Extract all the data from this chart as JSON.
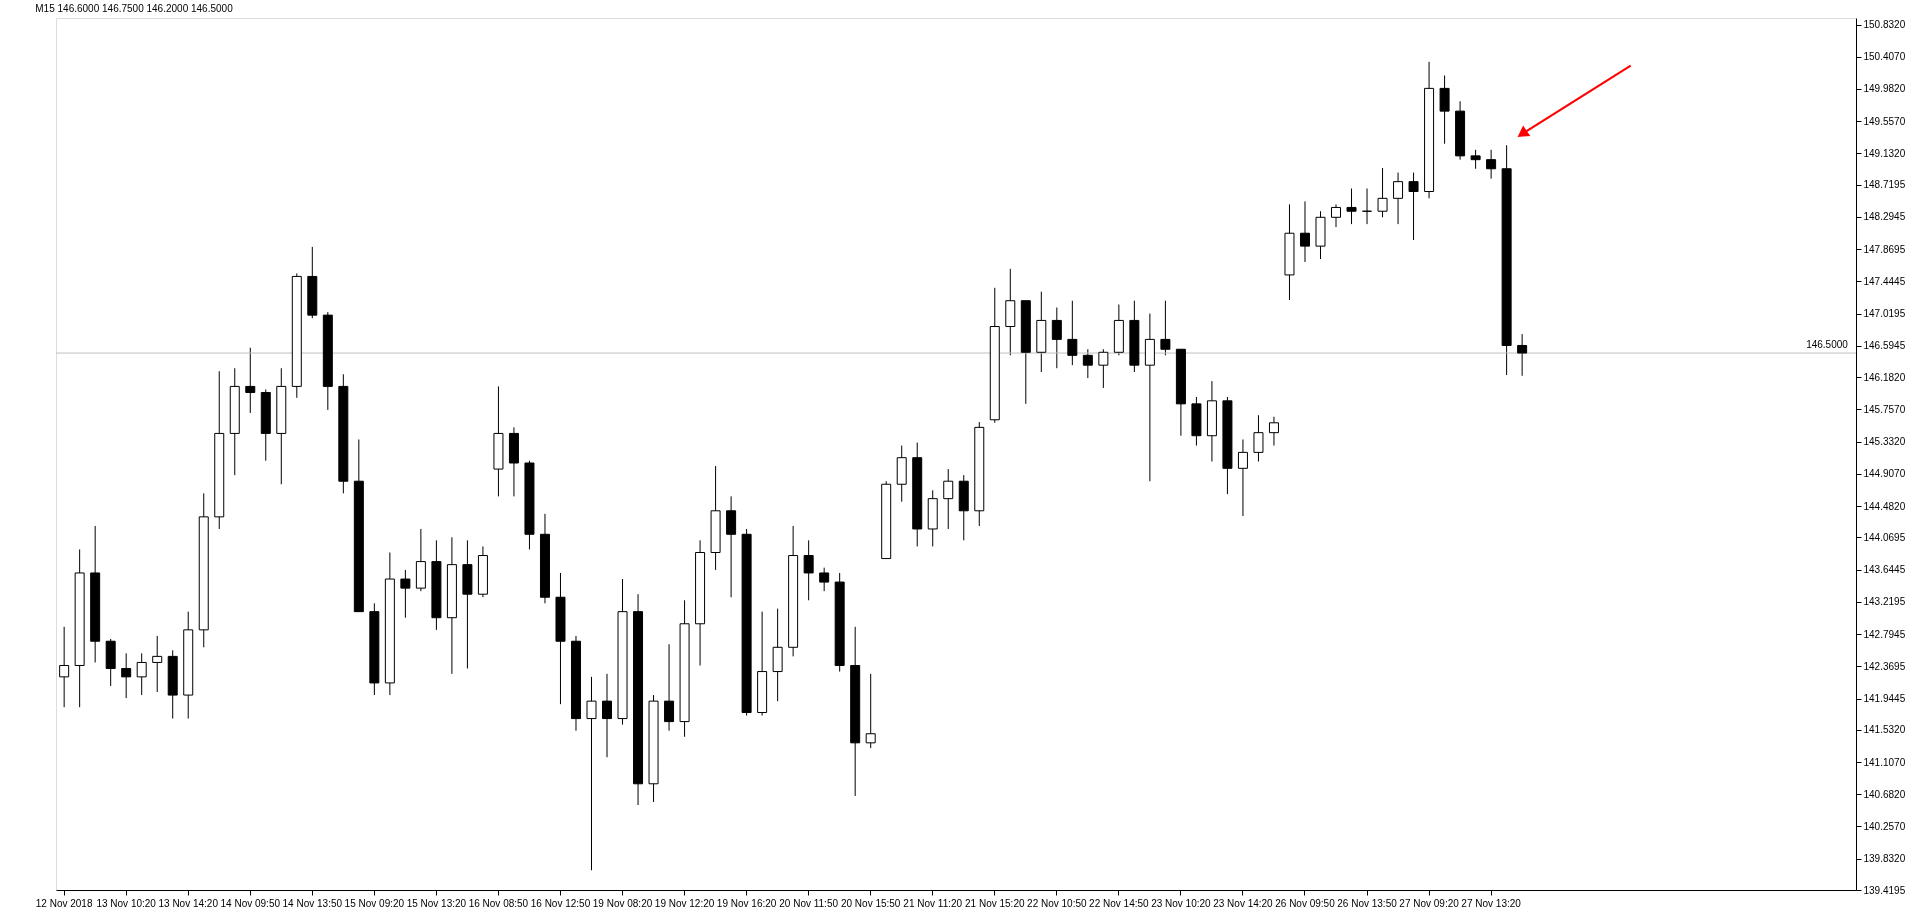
{
  "chart_data": {
    "type": "candlestick",
    "title": "M15  146.6000 146.7500 146.2000 146.5000",
    "categories": [
      "12 Nov 2018",
      null,
      null,
      null,
      "13 Nov 10:20",
      null,
      null,
      null,
      "13 Nov 14:20",
      null,
      null,
      null,
      "14 Nov 09:50",
      null,
      null,
      null,
      "14 Nov 13:50",
      null,
      null,
      null,
      "15 Nov 09:20",
      null,
      null,
      null,
      "15 Nov 13:20",
      null,
      null,
      null,
      "16 Nov 08:50",
      null,
      null,
      null,
      "16 Nov 12:50",
      null,
      null,
      null,
      "19 Nov 08:20",
      null,
      null,
      null,
      "19 Nov 12:20",
      null,
      null,
      null,
      "19 Nov 16:20",
      null,
      null,
      null,
      "20 Nov 11:50",
      null,
      null,
      null,
      "20 Nov 15:50",
      null,
      null,
      null,
      "21 Nov 11:20",
      null,
      null,
      null,
      "21 Nov 15:20",
      null,
      null,
      null,
      "22 Nov 10:50",
      null,
      null,
      null,
      "22 Nov 14:50",
      null,
      null,
      null,
      "23 Nov 10:20",
      null,
      null,
      null,
      "23 Nov 14:20",
      null,
      null,
      null,
      "26 Nov 09:50",
      null,
      null,
      null,
      "26 Nov 13:50",
      null,
      null,
      null,
      "27 Nov 09:20",
      null,
      null,
      null,
      "27 Nov 13:20",
      null,
      null,
      null,
      null,
      null,
      null,
      null,
      null,
      null,
      null,
      null,
      null,
      null,
      null,
      null,
      null,
      null,
      null,
      null,
      null,
      null,
      null,
      null
    ],
    "ohlc": [
      [
        142.23,
        142.89,
        141.83,
        142.38
      ],
      [
        142.38,
        143.91,
        141.83,
        143.6
      ],
      [
        143.6,
        144.22,
        142.42,
        142.7
      ],
      [
        142.7,
        142.73,
        142.11,
        142.34
      ],
      [
        142.34,
        142.54,
        141.95,
        142.23
      ],
      [
        142.23,
        142.54,
        141.99,
        142.42
      ],
      [
        142.42,
        142.77,
        142.03,
        142.5
      ],
      [
        142.5,
        142.58,
        141.68,
        141.99
      ],
      [
        141.99,
        143.09,
        141.68,
        142.85
      ],
      [
        142.85,
        144.65,
        142.62,
        144.34
      ],
      [
        144.34,
        146.26,
        144.18,
        145.44
      ],
      [
        145.44,
        146.3,
        144.89,
        146.06
      ],
      [
        146.06,
        146.57,
        145.71,
        145.98
      ],
      [
        145.98,
        146.02,
        145.08,
        145.44
      ],
      [
        145.44,
        146.3,
        144.77,
        146.06
      ],
      [
        146.06,
        147.55,
        145.91,
        147.51
      ],
      [
        147.51,
        147.9,
        146.96,
        147.0
      ],
      [
        147.0,
        147.04,
        145.75,
        146.06
      ],
      [
        146.06,
        146.22,
        144.65,
        144.81
      ],
      [
        144.81,
        145.36,
        143.09,
        143.09
      ],
      [
        143.09,
        143.2,
        141.99,
        142.15
      ],
      [
        142.15,
        143.87,
        141.99,
        143.52
      ],
      [
        143.52,
        143.64,
        143.01,
        143.4
      ],
      [
        143.4,
        144.18,
        143.36,
        143.75
      ],
      [
        143.75,
        144.03,
        142.85,
        143.01
      ],
      [
        143.01,
        144.07,
        142.27,
        143.71
      ],
      [
        143.71,
        144.03,
        142.34,
        143.32
      ],
      [
        143.32,
        143.95,
        143.28,
        143.83
      ],
      [
        144.97,
        146.06,
        144.61,
        145.44
      ],
      [
        145.44,
        145.52,
        144.61,
        145.05
      ],
      [
        145.05,
        145.08,
        143.91,
        144.11
      ],
      [
        144.11,
        144.38,
        143.2,
        143.28
      ],
      [
        143.28,
        143.6,
        141.87,
        142.7
      ],
      [
        142.7,
        142.77,
        141.52,
        141.68
      ],
      [
        141.68,
        142.23,
        139.68,
        141.91
      ],
      [
        141.91,
        142.27,
        141.17,
        141.68
      ],
      [
        141.68,
        143.52,
        141.6,
        143.09
      ],
      [
        143.09,
        143.32,
        140.54,
        140.82
      ],
      [
        140.82,
        141.99,
        140.58,
        141.91
      ],
      [
        141.91,
        142.66,
        141.52,
        141.64
      ],
      [
        141.64,
        143.24,
        141.44,
        142.93
      ],
      [
        142.93,
        144.03,
        142.38,
        143.87
      ],
      [
        143.87,
        145.01,
        143.64,
        144.42
      ],
      [
        144.42,
        144.61,
        143.28,
        144.11
      ],
      [
        144.11,
        144.18,
        141.72,
        141.76
      ],
      [
        141.76,
        143.09,
        141.72,
        142.3
      ],
      [
        142.3,
        143.13,
        141.91,
        142.62
      ],
      [
        142.62,
        144.22,
        142.5,
        143.83
      ],
      [
        143.83,
        144.03,
        143.24,
        143.6
      ],
      [
        143.6,
        143.67,
        143.36,
        143.48
      ],
      [
        143.48,
        143.6,
        142.3,
        142.38
      ],
      [
        142.38,
        142.89,
        140.66,
        141.36
      ],
      [
        141.36,
        142.27,
        141.29,
        141.48
      ],
      [
        143.79,
        144.81,
        143.79,
        144.77
      ],
      [
        144.77,
        145.28,
        144.54,
        145.12
      ],
      [
        145.12,
        145.32,
        143.95,
        144.18
      ],
      [
        144.18,
        144.69,
        143.95,
        144.58
      ],
      [
        144.58,
        144.97,
        144.18,
        144.81
      ],
      [
        144.81,
        144.89,
        144.03,
        144.42
      ],
      [
        144.42,
        145.59,
        144.22,
        145.52
      ],
      [
        145.62,
        147.36,
        145.58,
        146.85
      ],
      [
        146.85,
        147.61,
        146.47,
        147.19
      ],
      [
        147.19,
        147.19,
        145.83,
        146.51
      ],
      [
        146.51,
        147.31,
        146.25,
        146.93
      ],
      [
        146.93,
        147.1,
        146.3,
        146.68
      ],
      [
        146.68,
        147.19,
        146.34,
        146.47
      ],
      [
        146.47,
        146.55,
        146.17,
        146.34
      ],
      [
        146.34,
        146.55,
        146.04,
        146.51
      ],
      [
        146.51,
        147.14,
        146.47,
        146.93
      ],
      [
        146.93,
        147.19,
        146.25,
        146.34
      ],
      [
        146.34,
        147.02,
        144.81,
        146.68
      ],
      [
        146.68,
        147.19,
        146.47,
        146.55
      ],
      [
        146.55,
        146.55,
        145.41,
        145.83
      ],
      [
        145.83,
        145.92,
        145.28,
        145.41
      ],
      [
        145.41,
        146.13,
        145.07,
        145.87
      ],
      [
        145.87,
        145.92,
        144.64,
        144.98
      ],
      [
        144.98,
        145.36,
        144.35,
        145.19
      ],
      [
        145.19,
        145.68,
        145.07,
        145.45
      ],
      [
        145.45,
        145.66,
        145.28,
        145.58
      ],
      [
        147.53,
        148.46,
        147.2,
        148.08
      ],
      [
        148.08,
        148.5,
        147.7,
        147.91
      ],
      [
        147.91,
        148.37,
        147.74,
        148.29
      ],
      [
        148.29,
        148.46,
        148.16,
        148.42
      ],
      [
        148.42,
        148.67,
        148.2,
        148.37
      ],
      [
        148.37,
        148.67,
        148.2,
        148.37
      ],
      [
        148.37,
        148.94,
        148.29,
        148.54
      ],
      [
        148.54,
        148.88,
        148.2,
        148.76
      ],
      [
        148.76,
        148.88,
        147.99,
        148.63
      ],
      [
        148.63,
        150.34,
        148.54,
        149.99
      ],
      [
        149.99,
        150.16,
        149.26,
        149.69
      ],
      [
        149.69,
        149.82,
        149.05,
        149.1
      ],
      [
        149.1,
        149.18,
        148.93,
        149.05
      ],
      [
        149.05,
        149.18,
        148.8,
        148.93
      ],
      [
        148.93,
        149.24,
        146.21,
        146.6
      ],
      [
        146.6,
        146.75,
        146.2,
        146.5
      ],
      null,
      null,
      null,
      null,
      null,
      null,
      null,
      null,
      null,
      null,
      null,
      null,
      null,
      null,
      null,
      null,
      null,
      null,
      null,
      null,
      null
    ],
    "ylim": [
      139.4195,
      150.918
    ],
    "yticks": [
      {
        "value": 150.832,
        "label": "150.8320"
      },
      {
        "value": 150.407,
        "label": "150.4070"
      },
      {
        "value": 149.982,
        "label": "149.9820"
      },
      {
        "value": 149.557,
        "label": "149.5570"
      },
      {
        "value": 149.132,
        "label": "149.1320"
      },
      {
        "value": 148.7195,
        "label": "148.7195"
      },
      {
        "value": 148.2945,
        "label": "148.2945"
      },
      {
        "value": 147.8695,
        "label": "147.8695"
      },
      {
        "value": 147.4445,
        "label": "147.4445"
      },
      {
        "value": 147.0195,
        "label": "147.0195"
      },
      {
        "value": 146.5945,
        "label": "146.5945"
      },
      {
        "value": 146.182,
        "label": "146.1820"
      },
      {
        "value": 145.757,
        "label": "145.7570"
      },
      {
        "value": 145.332,
        "label": "145.3320"
      },
      {
        "value": 144.907,
        "label": "144.9070"
      },
      {
        "value": 144.482,
        "label": "144.4820"
      },
      {
        "value": 144.0695,
        "label": "144.0695"
      },
      {
        "value": 143.6445,
        "label": "143.6445"
      },
      {
        "value": 143.2195,
        "label": "143.2195"
      },
      {
        "value": 142.7945,
        "label": "142.7945"
      },
      {
        "value": 142.3695,
        "label": "142.3695"
      },
      {
        "value": 141.9445,
        "label": "141.9445"
      },
      {
        "value": 141.532,
        "label": "141.5320"
      },
      {
        "value": 141.107,
        "label": "141.1070"
      },
      {
        "value": 140.682,
        "label": "140.6820"
      },
      {
        "value": 140.257,
        "label": "140.2570"
      },
      {
        "value": 139.832,
        "label": "139.8320"
      },
      {
        "value": 139.4195,
        "label": "139.4195"
      }
    ],
    "ref_lines": [
      {
        "axis": "y",
        "value": 146.5,
        "label": "146.5000",
        "color": "#c0c0c0"
      }
    ],
    "grid": false
  }
}
